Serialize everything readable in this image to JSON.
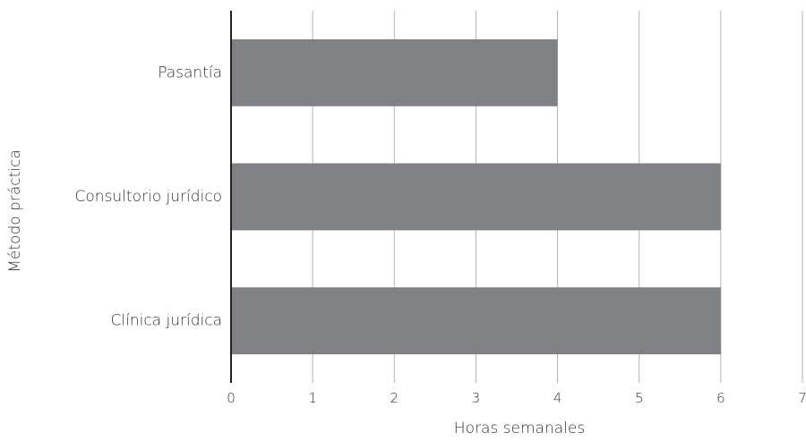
{
  "chart_data": {
    "type": "bar",
    "orientation": "horizontal",
    "categories": [
      "Pasantía",
      "Consultorio jurídico",
      "Clínica jurídica"
    ],
    "values": [
      4,
      6,
      6
    ],
    "title": "",
    "xlabel": "Horas semanales",
    "ylabel": "Método práctica",
    "xlim": [
      0,
      7
    ],
    "x_ticks": [
      "0",
      "1",
      "2",
      "3",
      "4",
      "5",
      "6",
      "7"
    ],
    "grid": "vertical",
    "legend": "none",
    "colors": {
      "bar": "#808184",
      "grid": "#b3b3b3",
      "axis": "#222222",
      "text": "#333333"
    }
  }
}
